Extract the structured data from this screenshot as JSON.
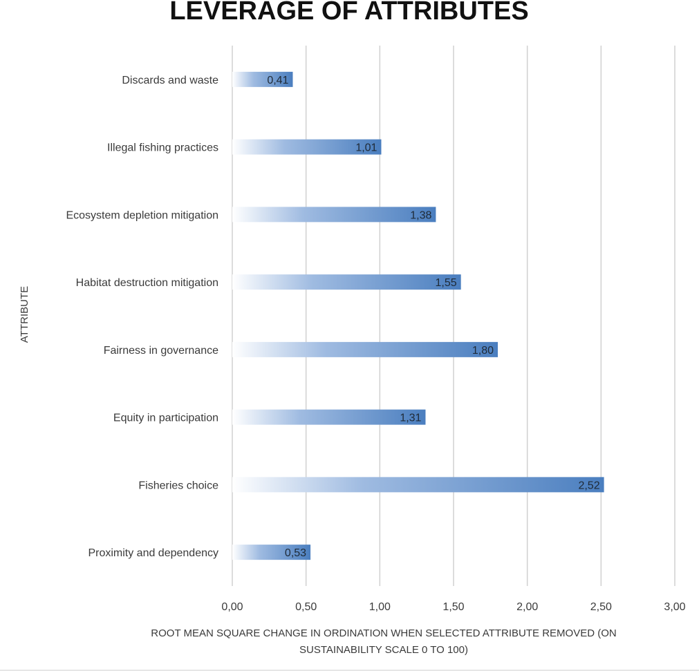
{
  "chart_data": {
    "type": "bar",
    "orientation": "horizontal",
    "title": "LEVERAGE OF ATTRIBUTES",
    "ylabel": "ATTRIBUTE",
    "xlabel_lines": [
      "ROOT MEAN SQUARE CHANGE IN ORDINATION WHEN SELECTED ATTRIBUTE REMOVED (ON",
      "SUSTAINABILITY SCALE 0 TO 100)"
    ],
    "categories": [
      "Discards and waste",
      "Illegal fishing practices",
      "Ecosystem depletion mitigation",
      "Habitat destruction mitigation",
      "Fairness in governance",
      "Equity in participation",
      "Fisheries choice",
      "Proximity and dependency"
    ],
    "values": [
      0.41,
      1.01,
      1.38,
      1.55,
      1.8,
      1.31,
      2.52,
      0.53
    ],
    "value_labels": [
      "0,41",
      "1,01",
      "1,38",
      "1,55",
      "1,80",
      "1,31",
      "2,52",
      "0,53"
    ],
    "xlim": [
      0,
      3
    ],
    "xticks": [
      0,
      0.5,
      1,
      1.5,
      2,
      2.5,
      3
    ],
    "xtick_labels": [
      "0,00",
      "0,50",
      "1,00",
      "1,50",
      "2,00",
      "2,50",
      "3,00"
    ],
    "grid": true,
    "legend": "none",
    "colors": {
      "bar_start": "#ffffff",
      "bar_mid": "#8eaedb",
      "bar_end": "#4a7ebf",
      "grid": "#d0d0d0"
    }
  }
}
